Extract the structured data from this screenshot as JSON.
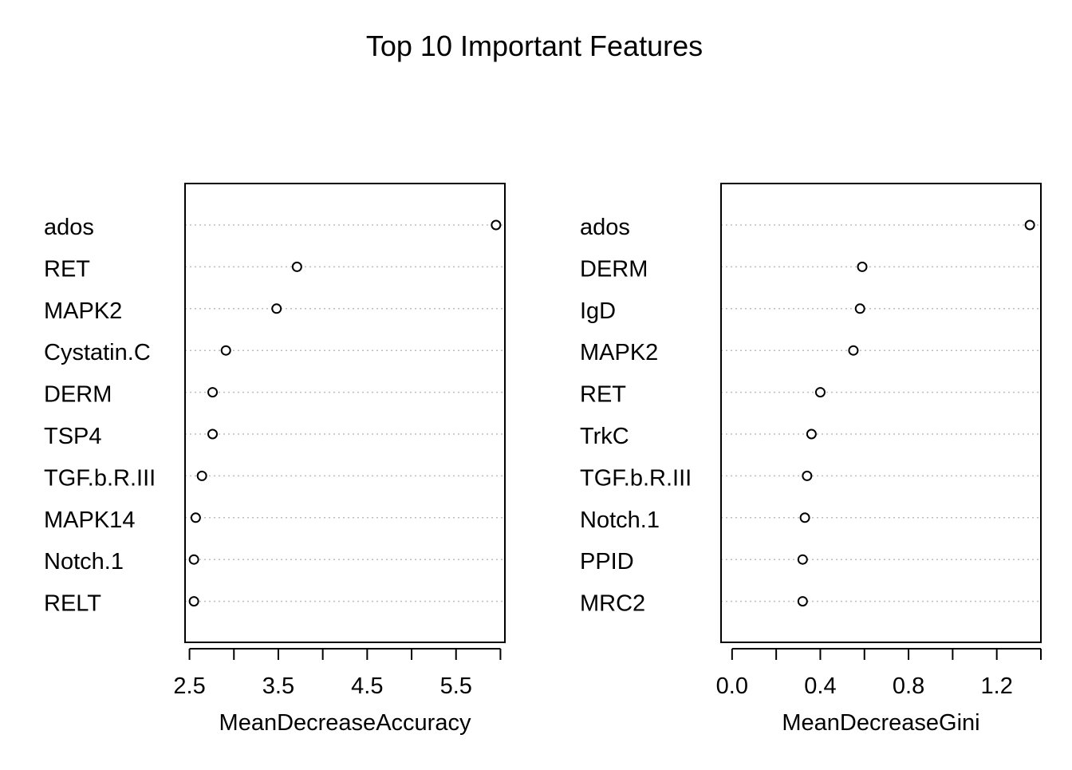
{
  "title": "Top 10 Important Features",
  "chart_data": [
    {
      "type": "scatter",
      "subtype": "dotchart",
      "xlabel": "MeanDecreaseAccuracy",
      "ylabel": "",
      "xlim": [
        2.45,
        6.05
      ],
      "xticks": [
        2.5,
        3.0,
        3.5,
        4.0,
        4.5,
        5.0,
        5.5,
        6.0
      ],
      "xtick_labels": [
        "2.5",
        "",
        "3.5",
        "",
        "4.5",
        "",
        "5.5",
        ""
      ],
      "grid": true,
      "categories": [
        "ados",
        "RET",
        "MAPK2",
        "Cystatin.C",
        "DERM",
        "TSP4",
        "TGF.b.R.III",
        "MAPK14",
        "Notch.1",
        "RELT"
      ],
      "values": [
        5.95,
        3.71,
        3.48,
        2.91,
        2.76,
        2.76,
        2.64,
        2.57,
        2.55,
        2.55
      ]
    },
    {
      "type": "scatter",
      "subtype": "dotchart",
      "xlabel": "MeanDecreaseGini",
      "ylabel": "",
      "xlim": [
        -0.05,
        1.4
      ],
      "xticks": [
        0.0,
        0.2,
        0.4,
        0.6,
        0.8,
        1.0,
        1.2,
        1.4
      ],
      "xtick_labels": [
        "0.0",
        "",
        "0.4",
        "",
        "0.8",
        "",
        "1.2",
        ""
      ],
      "grid": true,
      "categories": [
        "ados",
        "DERM",
        "IgD",
        "MAPK2",
        "RET",
        "TrkC",
        "TGF.b.R.III",
        "Notch.1",
        "PPID",
        "MRC2"
      ],
      "values": [
        1.35,
        0.59,
        0.58,
        0.55,
        0.4,
        0.36,
        0.34,
        0.33,
        0.32,
        0.32
      ]
    }
  ]
}
